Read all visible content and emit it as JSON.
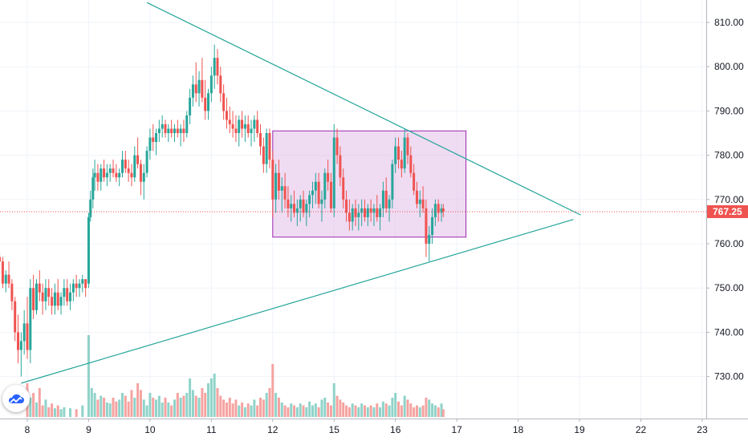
{
  "chart_data": {
    "type": "candlestick",
    "colors": {
      "up": "#26a69a",
      "down": "#ef5350",
      "trendline": "#26a69a",
      "rectangle_fill": "#e1bee7",
      "rectangle_border": "#9c27b0",
      "price_line": "#ef5350",
      "grid": "#f0f3fa"
    },
    "x_ticks": [
      {
        "label": "8",
        "t": 0
      },
      {
        "label": "9",
        "t": 1
      },
      {
        "label": "10",
        "t": 2
      },
      {
        "label": "11",
        "t": 3
      },
      {
        "label": "12",
        "t": 4
      },
      {
        "label": "15",
        "t": 5
      },
      {
        "label": "16",
        "t": 6
      },
      {
        "label": "17",
        "t": 7
      },
      {
        "label": "18",
        "t": 8
      },
      {
        "label": "19",
        "t": 9
      },
      {
        "label": "22",
        "t": 10
      },
      {
        "label": "23",
        "t": 11
      }
    ],
    "y_ticks": [
      "810.00",
      "800.00",
      "790.00",
      "780.00",
      "770.00",
      "760.00",
      "750.00",
      "740.00",
      "730.00"
    ],
    "ylim": [
      722,
      815
    ],
    "last_price": "767.25",
    "last_price_value": 767.25,
    "candles": [
      [
        -0.45,
        757,
        758,
        753,
        756
      ],
      [
        -0.4,
        756,
        757,
        750,
        751
      ],
      [
        -0.35,
        751,
        754,
        749,
        753
      ],
      [
        -0.3,
        753,
        756,
        750,
        751
      ],
      [
        -0.25,
        751,
        752,
        745,
        747
      ],
      [
        -0.2,
        747,
        748,
        738,
        740
      ],
      [
        -0.15,
        740,
        744,
        733,
        736
      ],
      [
        -0.1,
        736,
        740,
        730,
        738
      ],
      [
        -0.05,
        738,
        745,
        735,
        742
      ],
      [
        0.0,
        742,
        748,
        734,
        736
      ],
      [
        0.05,
        736,
        752,
        733,
        750
      ],
      [
        0.1,
        750,
        753,
        743,
        745
      ],
      [
        0.15,
        745,
        752,
        744,
        751
      ],
      [
        0.2,
        751,
        754,
        747,
        749
      ],
      [
        0.25,
        749,
        751,
        744,
        747
      ],
      [
        0.3,
        747,
        752,
        745,
        750
      ],
      [
        0.35,
        750,
        752,
        746,
        748
      ],
      [
        0.4,
        748,
        750,
        744,
        746
      ],
      [
        0.45,
        746,
        751,
        744,
        749
      ],
      [
        0.5,
        749,
        752,
        745,
        746
      ],
      [
        0.55,
        746,
        749,
        744,
        748
      ],
      [
        0.6,
        748,
        752,
        746,
        750
      ],
      [
        0.65,
        750,
        752,
        746,
        747
      ],
      [
        0.7,
        747,
        751,
        745,
        749
      ],
      [
        0.75,
        749,
        752,
        747,
        751
      ],
      [
        0.8,
        751,
        753,
        748,
        750
      ],
      [
        0.85,
        750,
        752,
        748,
        751
      ],
      [
        0.9,
        751,
        753,
        749,
        752
      ],
      [
        0.95,
        752,
        752,
        748,
        750
      ],
      [
        1.0,
        751,
        767,
        750,
        766
      ],
      [
        1.03,
        766,
        772,
        765,
        770
      ],
      [
        1.07,
        770,
        777,
        768,
        775
      ],
      [
        1.1,
        775,
        779,
        772,
        776
      ],
      [
        1.15,
        776,
        778,
        772,
        774
      ],
      [
        1.2,
        774,
        778,
        772,
        777
      ],
      [
        1.25,
        777,
        779,
        774,
        775
      ],
      [
        1.3,
        775,
        778,
        773,
        776
      ],
      [
        1.35,
        776,
        778,
        774,
        777
      ],
      [
        1.4,
        777,
        779,
        775,
        776
      ],
      [
        1.45,
        776,
        778,
        774,
        775
      ],
      [
        1.5,
        775,
        777,
        773,
        776
      ],
      [
        1.55,
        776,
        781,
        775,
        779
      ],
      [
        1.6,
        779,
        781,
        776,
        777
      ],
      [
        1.65,
        777,
        779,
        774,
        776
      ],
      [
        1.7,
        776,
        778,
        773,
        775
      ],
      [
        1.75,
        775,
        782,
        774,
        780
      ],
      [
        1.8,
        780,
        784,
        777,
        778
      ],
      [
        1.85,
        778,
        779,
        771,
        774
      ],
      [
        1.9,
        774,
        778,
        770,
        776
      ],
      [
        1.95,
        776,
        782,
        775,
        781
      ],
      [
        2.0,
        781,
        786,
        779,
        784
      ],
      [
        2.05,
        784,
        787,
        781,
        783
      ],
      [
        2.1,
        783,
        786,
        780,
        785
      ],
      [
        2.15,
        785,
        788,
        783,
        786
      ],
      [
        2.2,
        786,
        789,
        784,
        787
      ],
      [
        2.25,
        787,
        788,
        784,
        785
      ],
      [
        2.3,
        785,
        787,
        783,
        786
      ],
      [
        2.35,
        786,
        788,
        784,
        785
      ],
      [
        2.4,
        785,
        787,
        783,
        786
      ],
      [
        2.45,
        786,
        788,
        784,
        785
      ],
      [
        2.5,
        785,
        787,
        782,
        786
      ],
      [
        2.55,
        786,
        788,
        783,
        785
      ],
      [
        2.6,
        785,
        790,
        784,
        789
      ],
      [
        2.65,
        789,
        795,
        787,
        793
      ],
      [
        2.7,
        793,
        798,
        791,
        796
      ],
      [
        2.75,
        796,
        801,
        792,
        794
      ],
      [
        2.8,
        794,
        799,
        791,
        797
      ],
      [
        2.85,
        797,
        802,
        792,
        793
      ],
      [
        2.9,
        793,
        797,
        788,
        790
      ],
      [
        2.95,
        790,
        795,
        788,
        794
      ],
      [
        3.0,
        794,
        800,
        792,
        798
      ],
      [
        3.05,
        798,
        805,
        795,
        802
      ],
      [
        3.1,
        802,
        804,
        796,
        798
      ],
      [
        3.15,
        798,
        800,
        792,
        794
      ],
      [
        3.2,
        794,
        796,
        788,
        790
      ],
      [
        3.25,
        790,
        793,
        786,
        788
      ],
      [
        3.3,
        788,
        791,
        785,
        787
      ],
      [
        3.35,
        787,
        790,
        784,
        786
      ],
      [
        3.4,
        786,
        789,
        783,
        785
      ],
      [
        3.45,
        785,
        789,
        782,
        788
      ],
      [
        3.5,
        788,
        790,
        784,
        786
      ],
      [
        3.55,
        786,
        789,
        783,
        787
      ],
      [
        3.6,
        787,
        789,
        784,
        785
      ],
      [
        3.65,
        785,
        788,
        782,
        786
      ],
      [
        3.7,
        786,
        789,
        783,
        788
      ],
      [
        3.75,
        788,
        790,
        784,
        785
      ],
      [
        3.8,
        785,
        787,
        780,
        782
      ],
      [
        3.85,
        782,
        784,
        776,
        778
      ],
      [
        3.9,
        778,
        786,
        776,
        785
      ],
      [
        3.95,
        785,
        786,
        777,
        779
      ],
      [
        4.0,
        779,
        781,
        766,
        770
      ],
      [
        4.05,
        770,
        778,
        767,
        776
      ],
      [
        4.1,
        776,
        779,
        770,
        772
      ],
      [
        4.15,
        772,
        775,
        767,
        773
      ],
      [
        4.2,
        773,
        776,
        768,
        770
      ],
      [
        4.25,
        770,
        773,
        766,
        768
      ],
      [
        4.3,
        768,
        771,
        765,
        769
      ],
      [
        4.35,
        769,
        772,
        766,
        767
      ],
      [
        4.4,
        767,
        770,
        764,
        768
      ],
      [
        4.45,
        768,
        771,
        765,
        770
      ],
      [
        4.5,
        770,
        772,
        766,
        767
      ],
      [
        4.55,
        767,
        770,
        764,
        769
      ],
      [
        4.6,
        769,
        772,
        766,
        771
      ],
      [
        4.65,
        771,
        774,
        768,
        772
      ],
      [
        4.7,
        772,
        776,
        769,
        774
      ],
      [
        4.75,
        774,
        776,
        768,
        769
      ],
      [
        4.8,
        769,
        772,
        765,
        770
      ],
      [
        4.85,
        770,
        777,
        768,
        776
      ],
      [
        4.9,
        776,
        779,
        772,
        774
      ],
      [
        4.95,
        774,
        776,
        767,
        768
      ],
      [
        5.0,
        768,
        787,
        766,
        784
      ],
      [
        5.05,
        784,
        786,
        778,
        780
      ],
      [
        5.1,
        780,
        782,
        773,
        775
      ],
      [
        5.15,
        775,
        777,
        768,
        770
      ],
      [
        5.2,
        770,
        772,
        765,
        767
      ],
      [
        5.25,
        767,
        770,
        763,
        765
      ],
      [
        5.3,
        765,
        769,
        763,
        768
      ],
      [
        5.35,
        768,
        770,
        764,
        766
      ],
      [
        5.4,
        766,
        769,
        763,
        767
      ],
      [
        5.45,
        767,
        770,
        764,
        768
      ],
      [
        5.5,
        768,
        770,
        765,
        766
      ],
      [
        5.55,
        766,
        769,
        764,
        768
      ],
      [
        5.6,
        768,
        770,
        765,
        767
      ],
      [
        5.65,
        767,
        769,
        764,
        768
      ],
      [
        5.7,
        768,
        771,
        765,
        766
      ],
      [
        5.75,
        766,
        769,
        763,
        768
      ],
      [
        5.8,
        768,
        774,
        766,
        772
      ],
      [
        5.85,
        772,
        775,
        767,
        768
      ],
      [
        5.9,
        768,
        771,
        765,
        770
      ],
      [
        5.95,
        770,
        779,
        768,
        778
      ],
      [
        6.0,
        778,
        784,
        776,
        782
      ],
      [
        6.05,
        782,
        784,
        777,
        779
      ],
      [
        6.1,
        779,
        781,
        775,
        777
      ],
      [
        6.15,
        777,
        786,
        776,
        784
      ],
      [
        6.2,
        784,
        785,
        778,
        780
      ],
      [
        6.25,
        780,
        782,
        775,
        776
      ],
      [
        6.3,
        776,
        778,
        771,
        772
      ],
      [
        6.35,
        772,
        774,
        768,
        769
      ],
      [
        6.4,
        769,
        772,
        766,
        770
      ],
      [
        6.45,
        770,
        773,
        767,
        768
      ],
      [
        6.5,
        768,
        770,
        757,
        760
      ],
      [
        6.55,
        760,
        764,
        756,
        762
      ],
      [
        6.6,
        762,
        768,
        760,
        766
      ],
      [
        6.65,
        766,
        770,
        764,
        769
      ],
      [
        6.7,
        769,
        770,
        765,
        767
      ],
      [
        6.75,
        767,
        769,
        765,
        768
      ],
      [
        6.78,
        768,
        769,
        766,
        767.25
      ]
    ],
    "volumes": [
      [
        0.0,
        35
      ],
      [
        0.05,
        20
      ],
      [
        0.1,
        25
      ],
      [
        0.15,
        15
      ],
      [
        0.2,
        30
      ],
      [
        0.25,
        12
      ],
      [
        0.3,
        18
      ],
      [
        0.35,
        10
      ],
      [
        0.4,
        14
      ],
      [
        0.45,
        9
      ],
      [
        0.5,
        12
      ],
      [
        0.55,
        8
      ],
      [
        0.6,
        10
      ],
      [
        0.7,
        9
      ],
      [
        0.8,
        8
      ],
      [
        0.9,
        12
      ],
      [
        1.0,
        85
      ],
      [
        1.05,
        30
      ],
      [
        1.1,
        25
      ],
      [
        1.15,
        18
      ],
      [
        1.2,
        22
      ],
      [
        1.25,
        20
      ],
      [
        1.3,
        15
      ],
      [
        1.35,
        14
      ],
      [
        1.4,
        20
      ],
      [
        1.45,
        16
      ],
      [
        1.5,
        18
      ],
      [
        1.55,
        25
      ],
      [
        1.6,
        22
      ],
      [
        1.65,
        16
      ],
      [
        1.7,
        28
      ],
      [
        1.75,
        20
      ],
      [
        1.8,
        35
      ],
      [
        1.85,
        28
      ],
      [
        1.9,
        18
      ],
      [
        1.95,
        12
      ],
      [
        2.0,
        25
      ],
      [
        2.05,
        20
      ],
      [
        2.1,
        18
      ],
      [
        2.15,
        22
      ],
      [
        2.2,
        15
      ],
      [
        2.25,
        20
      ],
      [
        2.3,
        15
      ],
      [
        2.35,
        12
      ],
      [
        2.4,
        18
      ],
      [
        2.45,
        25
      ],
      [
        2.5,
        20
      ],
      [
        2.55,
        22
      ],
      [
        2.6,
        25
      ],
      [
        2.65,
        40
      ],
      [
        2.7,
        28
      ],
      [
        2.75,
        22
      ],
      [
        2.8,
        20
      ],
      [
        2.85,
        30
      ],
      [
        2.9,
        25
      ],
      [
        2.95,
        35
      ],
      [
        3.0,
        40
      ],
      [
        3.05,
        45
      ],
      [
        3.1,
        30
      ],
      [
        3.15,
        22
      ],
      [
        3.2,
        18
      ],
      [
        3.25,
        15
      ],
      [
        3.3,
        20
      ],
      [
        3.35,
        14
      ],
      [
        3.4,
        18
      ],
      [
        3.45,
        12
      ],
      [
        3.5,
        15
      ],
      [
        3.55,
        10
      ],
      [
        3.6,
        14
      ],
      [
        3.65,
        12
      ],
      [
        3.7,
        18
      ],
      [
        3.75,
        12
      ],
      [
        3.8,
        20
      ],
      [
        3.85,
        18
      ],
      [
        3.9,
        25
      ],
      [
        3.95,
        30
      ],
      [
        4.0,
        55
      ],
      [
        4.05,
        25
      ],
      [
        4.1,
        20
      ],
      [
        4.15,
        15
      ],
      [
        4.2,
        12
      ],
      [
        4.25,
        10
      ],
      [
        4.3,
        14
      ],
      [
        4.35,
        12
      ],
      [
        4.4,
        10
      ],
      [
        4.45,
        14
      ],
      [
        4.5,
        12
      ],
      [
        4.55,
        10
      ],
      [
        4.6,
        16
      ],
      [
        4.65,
        12
      ],
      [
        4.7,
        14
      ],
      [
        4.75,
        10
      ],
      [
        4.8,
        18
      ],
      [
        4.85,
        20
      ],
      [
        4.9,
        15
      ],
      [
        4.95,
        12
      ],
      [
        5.0,
        35
      ],
      [
        5.05,
        22
      ],
      [
        5.1,
        18
      ],
      [
        5.15,
        15
      ],
      [
        5.2,
        12
      ],
      [
        5.25,
        10
      ],
      [
        5.3,
        14
      ],
      [
        5.35,
        12
      ],
      [
        5.4,
        10
      ],
      [
        5.45,
        14
      ],
      [
        5.5,
        12
      ],
      [
        5.55,
        10
      ],
      [
        5.6,
        12
      ],
      [
        5.65,
        10
      ],
      [
        5.7,
        14
      ],
      [
        5.75,
        10
      ],
      [
        5.8,
        16
      ],
      [
        5.85,
        14
      ],
      [
        5.9,
        12
      ],
      [
        5.95,
        20
      ],
      [
        6.0,
        25
      ],
      [
        6.05,
        16
      ],
      [
        6.1,
        12
      ],
      [
        6.15,
        22
      ],
      [
        6.2,
        18
      ],
      [
        6.25,
        14
      ],
      [
        6.3,
        10
      ],
      [
        6.35,
        12
      ],
      [
        6.4,
        10
      ],
      [
        6.45,
        12
      ],
      [
        6.5,
        20
      ],
      [
        6.55,
        18
      ],
      [
        6.6,
        14
      ],
      [
        6.65,
        12
      ],
      [
        6.7,
        10
      ],
      [
        6.75,
        14
      ],
      [
        6.78,
        8
      ]
    ],
    "trendlines": [
      {
        "t1": 1.95,
        "p1": 814.5,
        "t2": 9.02,
        "p2": 766.5
      },
      {
        "t1": -0.1,
        "p1": 728.5,
        "t2": 8.9,
        "p2": 765.5
      }
    ],
    "rectangle": {
      "t1": 4.0,
      "p1": 785.5,
      "t2": 7.15,
      "p2": 761.5
    }
  }
}
